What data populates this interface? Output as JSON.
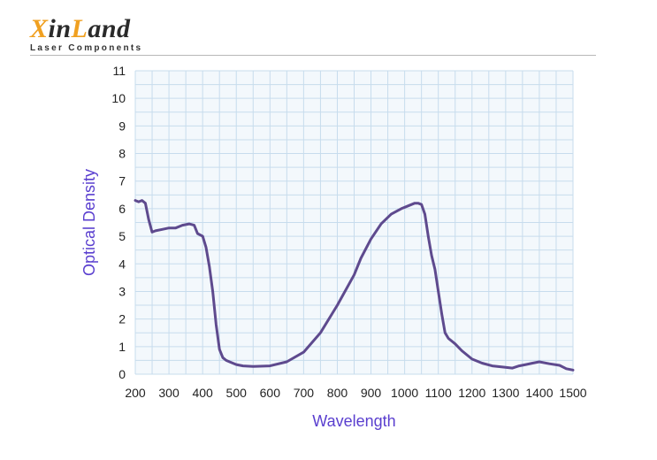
{
  "logo": {
    "letters": [
      {
        "text": "X",
        "accent": true
      },
      {
        "text": "in",
        "accent": false
      },
      {
        "text": "L",
        "accent": true
      },
      {
        "text": "and",
        "accent": false
      }
    ],
    "subtitle": "Laser Components"
  },
  "colors": {
    "accent": "#f0a020",
    "curve": "#5e4a8e",
    "axis_title": "#5a3fcf",
    "grid": "#c7dced",
    "plot_bg": "#f3f8fc"
  },
  "chart_data": {
    "type": "line",
    "title": "",
    "xlabel": "Wavelength",
    "ylabel": "Optical Density",
    "xlim": [
      200,
      1500
    ],
    "ylim": [
      0,
      11
    ],
    "xticks": [
      200,
      300,
      400,
      500,
      600,
      700,
      800,
      900,
      1000,
      1100,
      1200,
      1300,
      1400,
      1500
    ],
    "yticks": [
      0,
      1,
      2,
      3,
      4,
      5,
      6,
      7,
      8,
      9,
      10,
      11
    ],
    "grid": true,
    "series": [
      {
        "name": "Optical Density",
        "x": [
          200,
          210,
          220,
          230,
          240,
          250,
          260,
          280,
          300,
          320,
          340,
          360,
          375,
          385,
          400,
          410,
          420,
          430,
          440,
          450,
          460,
          470,
          480,
          500,
          520,
          550,
          600,
          650,
          700,
          750,
          800,
          850,
          870,
          900,
          930,
          960,
          990,
          1010,
          1030,
          1040,
          1050,
          1060,
          1070,
          1080,
          1090,
          1100,
          1110,
          1120,
          1130,
          1150,
          1170,
          1200,
          1230,
          1260,
          1300,
          1320,
          1340,
          1360,
          1380,
          1400,
          1430,
          1460,
          1480,
          1500
        ],
        "y": [
          6.3,
          6.25,
          6.3,
          6.2,
          5.6,
          5.15,
          5.2,
          5.25,
          5.3,
          5.3,
          5.4,
          5.45,
          5.4,
          5.1,
          5.0,
          4.6,
          3.9,
          3.0,
          1.8,
          0.9,
          0.6,
          0.5,
          0.45,
          0.35,
          0.3,
          0.28,
          0.3,
          0.45,
          0.8,
          1.5,
          2.5,
          3.6,
          4.2,
          4.9,
          5.45,
          5.8,
          6.0,
          6.1,
          6.2,
          6.2,
          6.15,
          5.8,
          5.0,
          4.3,
          3.8,
          3.0,
          2.2,
          1.5,
          1.3,
          1.1,
          0.85,
          0.55,
          0.4,
          0.3,
          0.25,
          0.22,
          0.3,
          0.35,
          0.4,
          0.45,
          0.38,
          0.32,
          0.2,
          0.15
        ]
      }
    ]
  }
}
